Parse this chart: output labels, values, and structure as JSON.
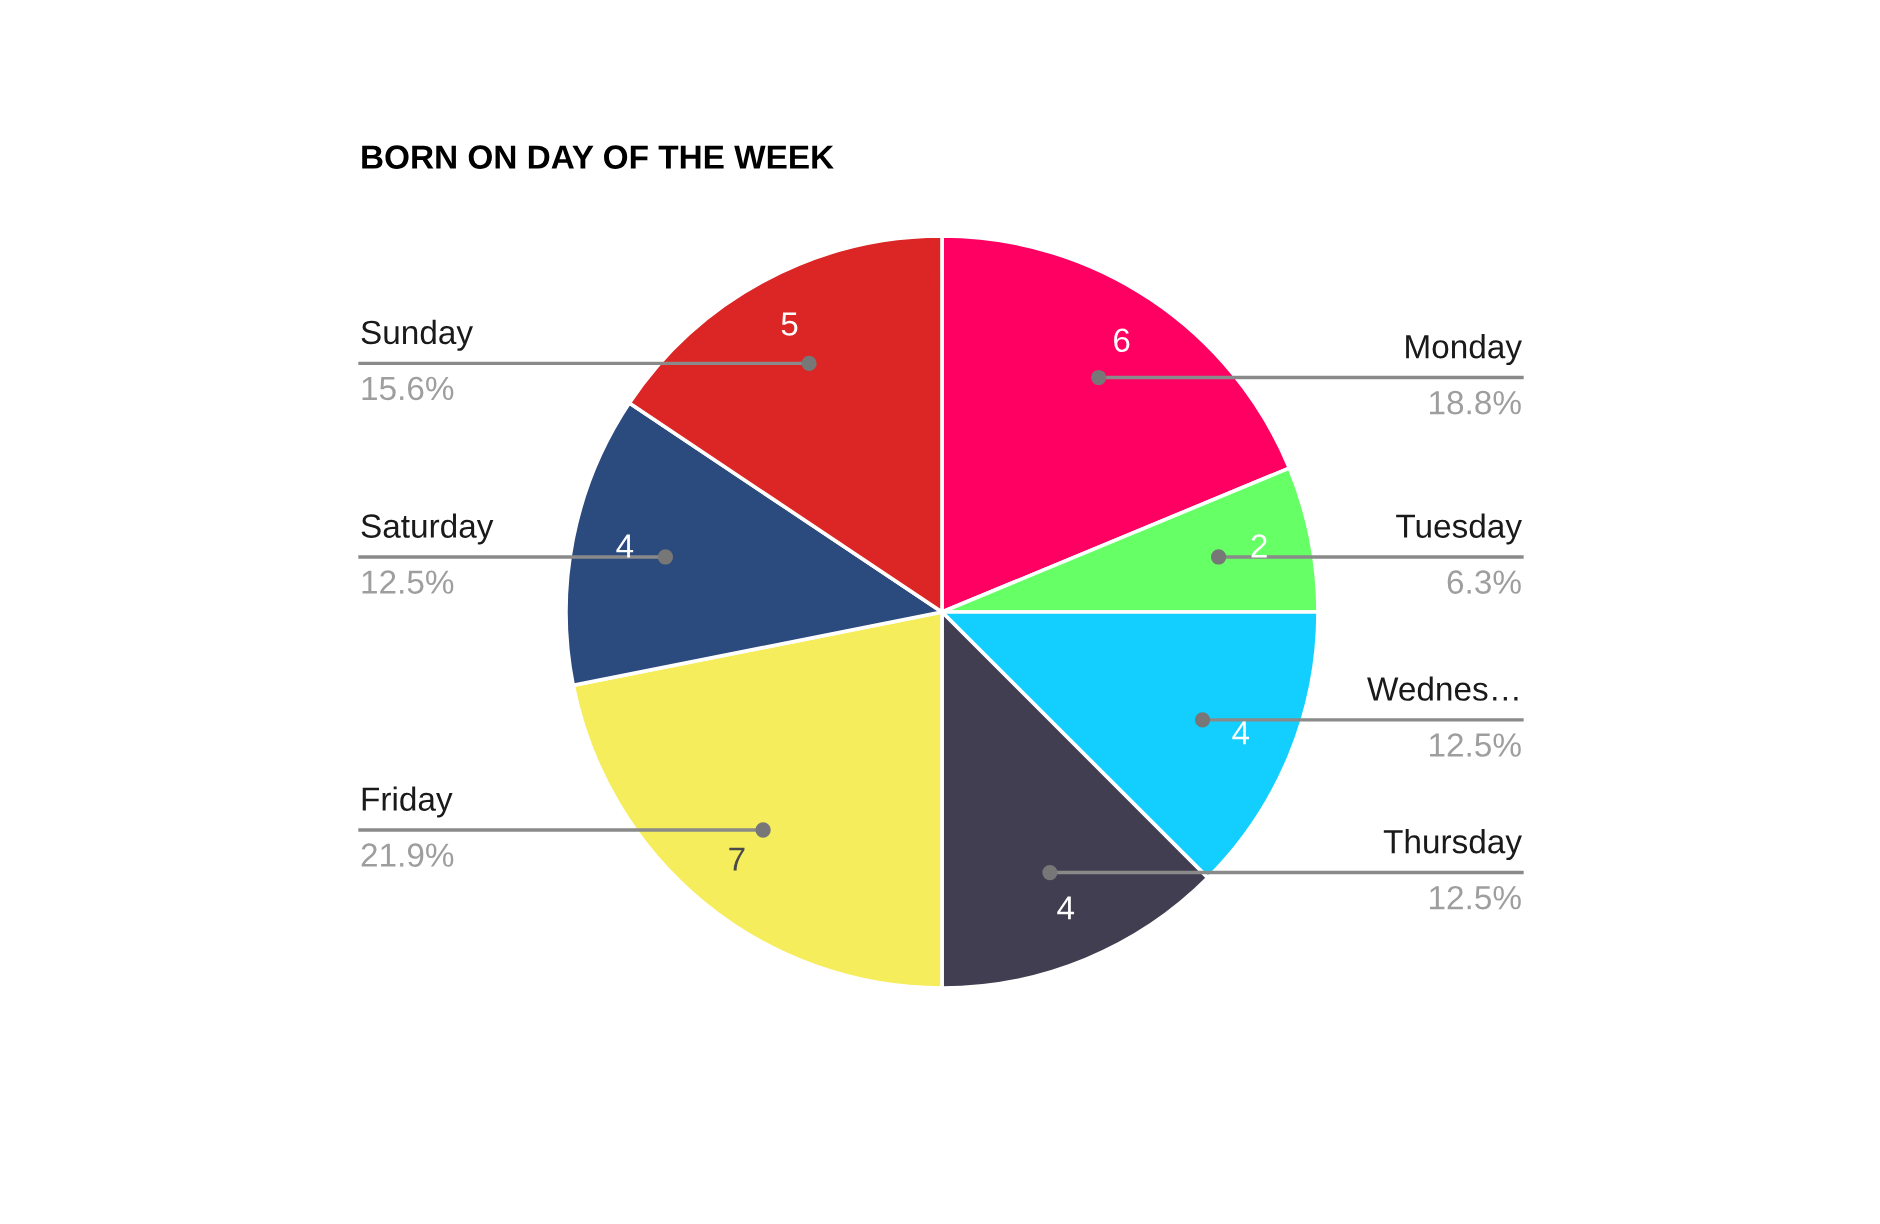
{
  "chart_data": {
    "type": "pie",
    "title": "BORN ON DAY OF THE WEEK",
    "categories": [
      "Monday",
      "Tuesday",
      "Wednes…",
      "Thursday",
      "Friday",
      "Saturday",
      "Sunday"
    ],
    "values": [
      6,
      2,
      4,
      4,
      7,
      4,
      5
    ],
    "colors": [
      "#ff0062",
      "#66ff66",
      "#13cfff",
      "#423e51",
      "#f6ed5d",
      "#2b4a7d",
      "#dc2626"
    ],
    "data_labels": true,
    "annotations": [
      "18.8%",
      "6.3%",
      "12.5%",
      "12.5%",
      "21.9%",
      "12.5%",
      "15.6%"
    ]
  }
}
